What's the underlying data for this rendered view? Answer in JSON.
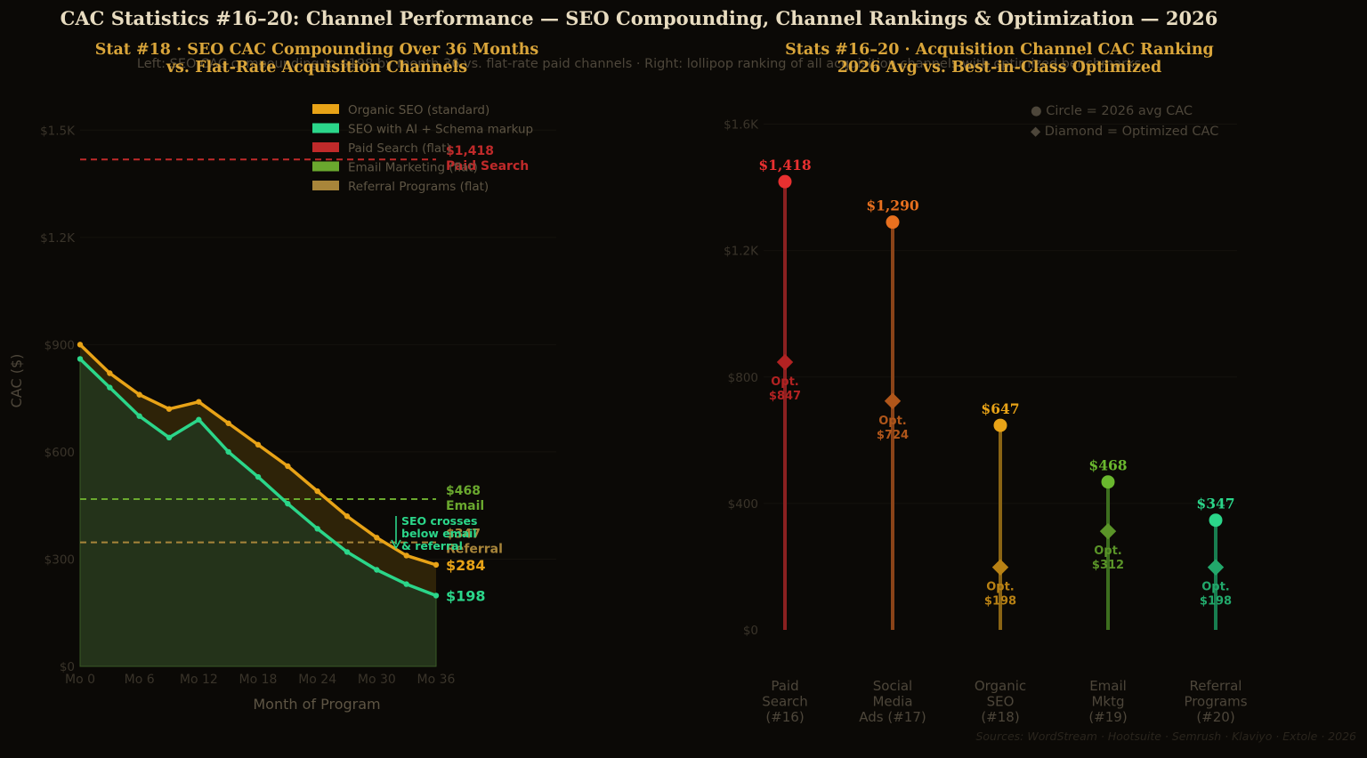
{
  "page": {
    "title": "CAC Statistics #16–20: Channel Performance — SEO Compounding, Channel Rankings & Optimization — 2026",
    "subtitle": "Left: SEO CAC compounding to $198 by month 36 vs. flat-rate paid channels  ·  Right: lollipop ranking of all acquisition channels with optimized benchmarks",
    "sources": "Sources: WordStream · Hootsuite · Semrush · Klaviyo · Extole · 2026"
  },
  "colors": {
    "background": "#0b0906",
    "title": "#e8dcc0",
    "panel_title": "#d9a53a",
    "muted": "#4d463a",
    "organic": "#e8a317",
    "seo_ai": "#2bd68a",
    "paid": "#c02a2a",
    "social": "#e8701f",
    "email": "#6aa82e",
    "referral": "#a8853a",
    "paid_point": "#e83030"
  },
  "chart_data": [
    {
      "type": "line",
      "title": "Stat #18 · SEO CAC Compounding Over 36 Months\nvs. Flat-Rate Acquisition Channels",
      "xlabel": "Month of Program",
      "ylabel": "CAC ($)",
      "x": [
        0,
        3,
        6,
        9,
        12,
        15,
        18,
        21,
        24,
        27,
        30,
        33,
        36
      ],
      "x_tick_values": [
        0,
        6,
        12,
        18,
        24,
        30,
        36
      ],
      "x_tick_labels": [
        "Mo 0",
        "Mo 6",
        "Mo 12",
        "Mo 18",
        "Mo 24",
        "Mo 30",
        "Mo 36"
      ],
      "y_tick_values": [
        0,
        300,
        600,
        900,
        1200,
        1500
      ],
      "y_tick_labels": [
        "$0",
        "$300",
        "$600",
        "$900",
        "$1.2K",
        "$1.5K"
      ],
      "ylim": [
        0,
        1650
      ],
      "xlim": [
        0,
        36
      ],
      "grid": true,
      "legend": "top-center",
      "series": [
        {
          "name": "Organic SEO (standard)",
          "color": "#e8a317",
          "values": [
            900,
            820,
            760,
            720,
            740,
            680,
            620,
            560,
            490,
            420,
            360,
            310,
            284
          ],
          "end_label": "$284"
        },
        {
          "name": "SEO with AI + Schema markup",
          "color": "#2bd68a",
          "values": [
            860,
            780,
            700,
            640,
            690,
            600,
            530,
            455,
            385,
            320,
            270,
            230,
            198
          ],
          "end_label": "$198"
        }
      ],
      "flat_lines": [
        {
          "name": "Paid Search (flat)",
          "color": "#c02a2a",
          "value": 1418,
          "value_label": "$1,418",
          "tag": "Paid Search"
        },
        {
          "name": "Email Marketing (flat)",
          "color": "#6aa82e",
          "value": 468,
          "value_label": "$468",
          "tag": "Email"
        },
        {
          "name": "Referral Programs (flat)",
          "color": "#a8853a",
          "value": 347,
          "value_label": "$347",
          "tag": "Referral"
        }
      ],
      "annotation": {
        "lines": [
          "SEO crosses",
          "below email",
          "& referral"
        ],
        "x": 32,
        "y": 440
      }
    },
    {
      "type": "lollipop",
      "title": "Stats #16–20 · Acquisition Channel CAC Ranking\n2026 Avg vs. Best-in-Class Optimized",
      "ylim": [
        0,
        1600
      ],
      "y_tick_values": [
        0,
        400,
        800,
        1200,
        1600
      ],
      "y_tick_labels": [
        "$0",
        "$400",
        "$800",
        "$1.2K",
        "$1.6K"
      ],
      "grid": true,
      "legend": [
        "● Circle = 2026 avg CAC",
        "◆ Diamond = Optimized CAC"
      ],
      "categories": [
        {
          "lines": [
            "Paid",
            "Search",
            "(#16)"
          ],
          "avg": 1418,
          "avg_label": "$1,418",
          "opt": 847,
          "opt_lines": [
            "Opt.",
            "$847"
          ],
          "color": "#e83030",
          "stem": "#8a2020",
          "diamond": "#b22222"
        },
        {
          "lines": [
            "Social",
            "Media",
            "Ads (#17)"
          ],
          "avg": 1290,
          "avg_label": "$1,290",
          "opt": 724,
          "opt_lines": [
            "Opt.",
            "$724"
          ],
          "color": "#e8701f",
          "stem": "#8a4318",
          "diamond": "#b0561a"
        },
        {
          "lines": [
            "Organic",
            "SEO",
            "(#18)"
          ],
          "avg": 647,
          "avg_label": "$647",
          "opt": 198,
          "opt_lines": [
            "Opt.",
            "$198"
          ],
          "color": "#e8a317",
          "stem": "#8a6414",
          "diamond": "#b88114"
        },
        {
          "lines": [
            "Email",
            "Mktg",
            "(#19)"
          ],
          "avg": 468,
          "avg_label": "$468",
          "opt": 312,
          "opt_lines": [
            "Opt.",
            "$312"
          ],
          "color": "#6ab82e",
          "stem": "#3d6e1e",
          "diamond": "#5a9428"
        },
        {
          "lines": [
            "Referral",
            "Programs",
            "(#20)"
          ],
          "avg": 347,
          "avg_label": "$347",
          "opt": 198,
          "opt_lines": [
            "Opt.",
            "$198"
          ],
          "color": "#2bd68a",
          "stem": "#187e50",
          "diamond": "#22a86b"
        }
      ]
    }
  ]
}
